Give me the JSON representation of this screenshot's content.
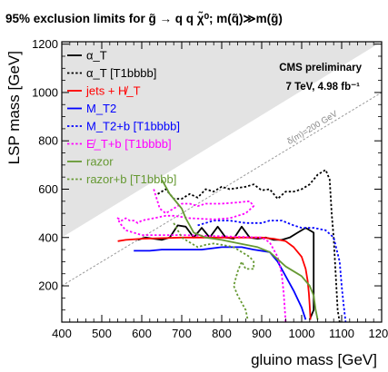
{
  "chart_data": {
    "type": "line",
    "title": "95% exclusion limits for g̃ → q q χ̃⁰; m(q̃)≫m(g̃)",
    "xlabel": "gluino mass [GeV]",
    "ylabel": "LSP mass [GeV]",
    "xlim": [
      400,
      1200
    ],
    "ylim": [
      50,
      1210
    ],
    "x_ticks": [
      400,
      500,
      600,
      700,
      800,
      900,
      1000,
      1100,
      1200
    ],
    "y_ticks": [
      200,
      400,
      600,
      800,
      1000,
      1200
    ],
    "grid": false,
    "legend_placement": "top-left",
    "annotations": {
      "preliminary": "CMS preliminary",
      "lumi": "7 TeV, 4.98 fb⁻¹",
      "diagonal": "δ(m)=200 GeV"
    },
    "series": [
      {
        "name": "α_T",
        "color": "#000000",
        "dash": "solid",
        "points": [
          [
            590,
            390
          ],
          [
            610,
            400
          ],
          [
            630,
            395
          ],
          [
            650,
            390
          ],
          [
            670,
            400
          ],
          [
            690,
            450
          ],
          [
            710,
            445
          ],
          [
            730,
            400
          ],
          [
            750,
            440
          ],
          [
            770,
            400
          ],
          [
            790,
            445
          ],
          [
            810,
            400
          ],
          [
            830,
            395
          ],
          [
            850,
            445
          ],
          [
            870,
            400
          ],
          [
            890,
            395
          ],
          [
            910,
            400
          ],
          [
            930,
            390
          ],
          [
            950,
            390
          ],
          [
            970,
            400
          ],
          [
            990,
            420
          ],
          [
            1010,
            440
          ],
          [
            1030,
            420
          ],
          [
            1030,
            200
          ],
          [
            1030,
            100
          ],
          [
            1020,
            60
          ]
        ]
      },
      {
        "name": "α_T [T1bbbb]",
        "color": "#000000",
        "dash": "dotted",
        "points": [
          [
            640,
            580
          ],
          [
            660,
            600
          ],
          [
            680,
            560
          ],
          [
            700,
            560
          ],
          [
            720,
            580
          ],
          [
            740,
            565
          ],
          [
            760,
            600
          ],
          [
            780,
            590
          ],
          [
            800,
            610
          ],
          [
            820,
            600
          ],
          [
            840,
            605
          ],
          [
            860,
            610
          ],
          [
            880,
            620
          ],
          [
            900,
            595
          ],
          [
            920,
            600
          ],
          [
            940,
            560
          ],
          [
            960,
            590
          ],
          [
            980,
            590
          ],
          [
            1000,
            600
          ],
          [
            1020,
            620
          ],
          [
            1040,
            660
          ],
          [
            1060,
            680
          ],
          [
            1070,
            640
          ],
          [
            1075,
            500
          ],
          [
            1080,
            400
          ],
          [
            1085,
            250
          ],
          [
            1090,
            100
          ],
          [
            1095,
            50
          ]
        ]
      },
      {
        "name": "jets + H̸_T",
        "color": "#ff0000",
        "dash": "solid",
        "points": [
          [
            540,
            385
          ],
          [
            560,
            390
          ],
          [
            600,
            395
          ],
          [
            700,
            400
          ],
          [
            800,
            400
          ],
          [
            900,
            400
          ],
          [
            930,
            395
          ],
          [
            960,
            385
          ],
          [
            980,
            360
          ],
          [
            1000,
            320
          ],
          [
            1010,
            270
          ],
          [
            1015,
            220
          ],
          [
            1018,
            170
          ],
          [
            1020,
            120
          ],
          [
            1022,
            60
          ]
        ]
      },
      {
        "name": "M_T2",
        "color": "#0000ff",
        "dash": "solid",
        "points": [
          [
            580,
            345
          ],
          [
            620,
            345
          ],
          [
            650,
            350
          ],
          [
            700,
            350
          ],
          [
            750,
            350
          ],
          [
            800,
            360
          ],
          [
            850,
            360
          ],
          [
            880,
            350
          ],
          [
            920,
            340
          ],
          [
            940,
            300
          ],
          [
            960,
            240
          ],
          [
            980,
            180
          ],
          [
            1000,
            110
          ],
          [
            1010,
            60
          ]
        ]
      },
      {
        "name": "M_T2+b [T1bbbb]",
        "color": "#0000ff",
        "dash": "dotted",
        "points": [
          [
            740,
            450
          ],
          [
            780,
            470
          ],
          [
            820,
            470
          ],
          [
            860,
            460
          ],
          [
            900,
            460
          ],
          [
            920,
            470
          ],
          [
            950,
            470
          ],
          [
            980,
            450
          ],
          [
            1000,
            440
          ],
          [
            1030,
            440
          ],
          [
            1060,
            430
          ],
          [
            1080,
            400
          ],
          [
            1095,
            300
          ],
          [
            1100,
            200
          ],
          [
            1105,
            120
          ],
          [
            1110,
            50
          ]
        ]
      },
      {
        "name": "E̸_T+b [T1bbbb]",
        "color": "#ff00ff",
        "dash": "dotted",
        "points": [
          [
            630,
            600
          ],
          [
            645,
            520
          ],
          [
            660,
            500
          ],
          [
            680,
            520
          ],
          [
            700,
            540
          ],
          [
            720,
            540
          ],
          [
            740,
            530
          ],
          [
            760,
            540
          ],
          [
            800,
            540
          ],
          [
            840,
            545
          ],
          [
            870,
            550
          ],
          [
            880,
            530
          ],
          [
            860,
            500
          ],
          [
            820,
            480
          ],
          [
            780,
            475
          ],
          [
            720,
            480
          ],
          [
            680,
            490
          ],
          [
            660,
            490
          ],
          [
            630,
            480
          ],
          [
            600,
            470
          ],
          [
            590,
            460
          ],
          [
            580,
            470
          ],
          [
            570,
            470
          ],
          [
            560,
            480
          ],
          [
            550,
            470
          ],
          [
            540,
            480
          ],
          [
            545,
            460
          ],
          [
            560,
            430
          ],
          [
            580,
            420
          ],
          [
            600,
            410
          ],
          [
            700,
            410
          ],
          [
            800,
            405
          ],
          [
            900,
            400
          ],
          [
            920,
            380
          ],
          [
            940,
            320
          ],
          [
            950,
            250
          ],
          [
            955,
            170
          ],
          [
            958,
            100
          ],
          [
            960,
            50
          ]
        ]
      },
      {
        "name": "razor",
        "color": "#669933",
        "dash": "solid",
        "points": [
          [
            650,
            640
          ],
          [
            670,
            580
          ],
          [
            690,
            540
          ],
          [
            700,
            520
          ],
          [
            710,
            480
          ],
          [
            730,
            420
          ],
          [
            760,
            400
          ],
          [
            800,
            390
          ],
          [
            830,
            380
          ],
          [
            860,
            370
          ],
          [
            890,
            360
          ],
          [
            920,
            340
          ],
          [
            940,
            310
          ],
          [
            960,
            280
          ],
          [
            990,
            250
          ],
          [
            1000,
            240
          ],
          [
            1020,
            200
          ],
          [
            1030,
            160
          ],
          [
            1035,
            100
          ],
          [
            1040,
            60
          ]
        ]
      },
      {
        "name": "razor+b [T1bbbb]",
        "color": "#669933",
        "dash": "dotted",
        "points": [
          [
            680,
            460
          ],
          [
            700,
            400
          ],
          [
            720,
            380
          ],
          [
            740,
            360
          ],
          [
            760,
            370
          ],
          [
            780,
            375
          ],
          [
            800,
            370
          ],
          [
            830,
            360
          ],
          [
            850,
            340
          ],
          [
            870,
            320
          ],
          [
            880,
            300
          ],
          [
            880,
            270
          ],
          [
            860,
            270
          ],
          [
            850,
            300
          ],
          [
            840,
            260
          ],
          [
            830,
            200
          ],
          [
            840,
            160
          ],
          [
            850,
            130
          ],
          [
            860,
            100
          ],
          [
            865,
            60
          ]
        ]
      }
    ]
  }
}
